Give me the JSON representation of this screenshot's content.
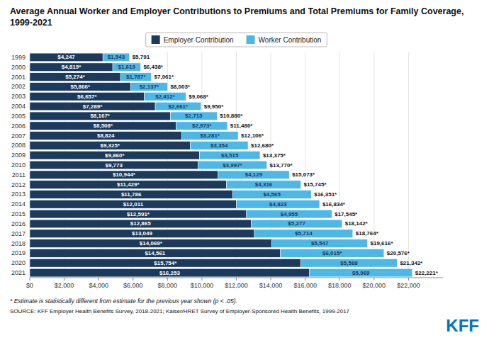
{
  "chart_data": {
    "type": "bar",
    "orientation": "horizontal",
    "stacked": true,
    "data_labels": true,
    "grid": true,
    "legend": "top",
    "title": "Average Annual Worker and Employer Contributions to Premiums and Total Premiums for Family Coverage, 1999-2021",
    "categories": [
      "1999",
      "2000",
      "2001",
      "2002",
      "2003",
      "2004",
      "2005",
      "2006",
      "2007",
      "2008",
      "2009",
      "2010",
      "2011",
      "2012",
      "2013",
      "2014",
      "2015",
      "2016",
      "2017",
      "2018",
      "2019",
      "2020",
      "2021"
    ],
    "series": [
      {
        "name": "Employer Contribution",
        "color": "#1b3a5c",
        "values": [
          4247,
          4819,
          5274,
          5866,
          6657,
          7289,
          8167,
          8508,
          8824,
          9325,
          9860,
          9773,
          10944,
          11429,
          11786,
          12011,
          12591,
          12865,
          13049,
          14069,
          14561,
          15754,
          16253
        ],
        "value_labels": [
          "$4,247",
          "$4,819*",
          "$5,274*",
          "$5,866*",
          "$6,657*",
          "$7,289*",
          "$8,167*",
          "$8,508*",
          "$8,824",
          "$9,325*",
          "$9,860*",
          "$9,773",
          "$10,944*",
          "$11,429*",
          "$11,786",
          "$12,011",
          "$12,591*",
          "$12,865",
          "$13,049",
          "$14,069*",
          "$14,561",
          "$15,754*",
          "$16,253"
        ]
      },
      {
        "name": "Worker Contribution",
        "color": "#4db8e8",
        "values": [
          1543,
          1619,
          1787,
          2137,
          2412,
          2661,
          2713,
          2973,
          3281,
          3354,
          3515,
          3997,
          4129,
          4316,
          4565,
          4823,
          4955,
          5277,
          5714,
          5547,
          6015,
          5588,
          5969
        ],
        "value_labels": [
          "$1,543",
          "$1,619",
          "$1,787*",
          "$2,137*",
          "$2,412*",
          "$2,661*",
          "$2,713",
          "$2,973*",
          "$3,281*",
          "$3,354",
          "$3,515",
          "$3,997*",
          "$4,129",
          "$4,316",
          "$4,565",
          "$4,823",
          "$4,955",
          "$5,277",
          "$5,714",
          "$5,547",
          "$6,015*",
          "$5,588",
          "$5,969"
        ]
      }
    ],
    "totals": [
      5791,
      6438,
      7061,
      8003,
      9068,
      9950,
      10880,
      11480,
      12106,
      12680,
      13375,
      13770,
      15073,
      15745,
      16351,
      16834,
      17545,
      18142,
      18764,
      19616,
      20576,
      21342,
      22221
    ],
    "total_labels": [
      "$5,791",
      "$6,438*",
      "$7,061*",
      "$8,003*",
      "$9,068*",
      "$9,950*",
      "$10,880*",
      "$11,480*",
      "$12,106*",
      "$12,680*",
      "$13,375*",
      "$13,770*",
      "$15,073*",
      "$15,745*",
      "$16,351*",
      "$16,834*",
      "$17,545*",
      "$18,142*",
      "$18,764*",
      "$19,616*",
      "$20,576*",
      "$21,342*",
      "$22,221*"
    ],
    "xlim": [
      0,
      24000
    ],
    "xticks": [
      {
        "value": 0,
        "label": "$0"
      },
      {
        "value": 2000,
        "label": "$2,000"
      },
      {
        "value": 4000,
        "label": "$4,000"
      },
      {
        "value": 6000,
        "label": "$6,000"
      },
      {
        "value": 8000,
        "label": "$8,000"
      },
      {
        "value": 10000,
        "label": "$10,000"
      },
      {
        "value": 12000,
        "label": "$12,000"
      },
      {
        "value": 14000,
        "label": "$14,000"
      },
      {
        "value": 16000,
        "label": "$16,000"
      },
      {
        "value": 18000,
        "label": "$18,000"
      },
      {
        "value": 20000,
        "label": "$20,000"
      },
      {
        "value": 22000,
        "label": "$22,000"
      }
    ],
    "annotations": [
      "* Estimate is statistically different from estimate for the previous year shown (p < .05).",
      "SOURCE: KFF Employer Health Benefits Survey, 2018-2021; Kaiser/HRET Survey of Employer-Sponsored Health Benefits, 1999-2017",
      "KFF"
    ]
  }
}
